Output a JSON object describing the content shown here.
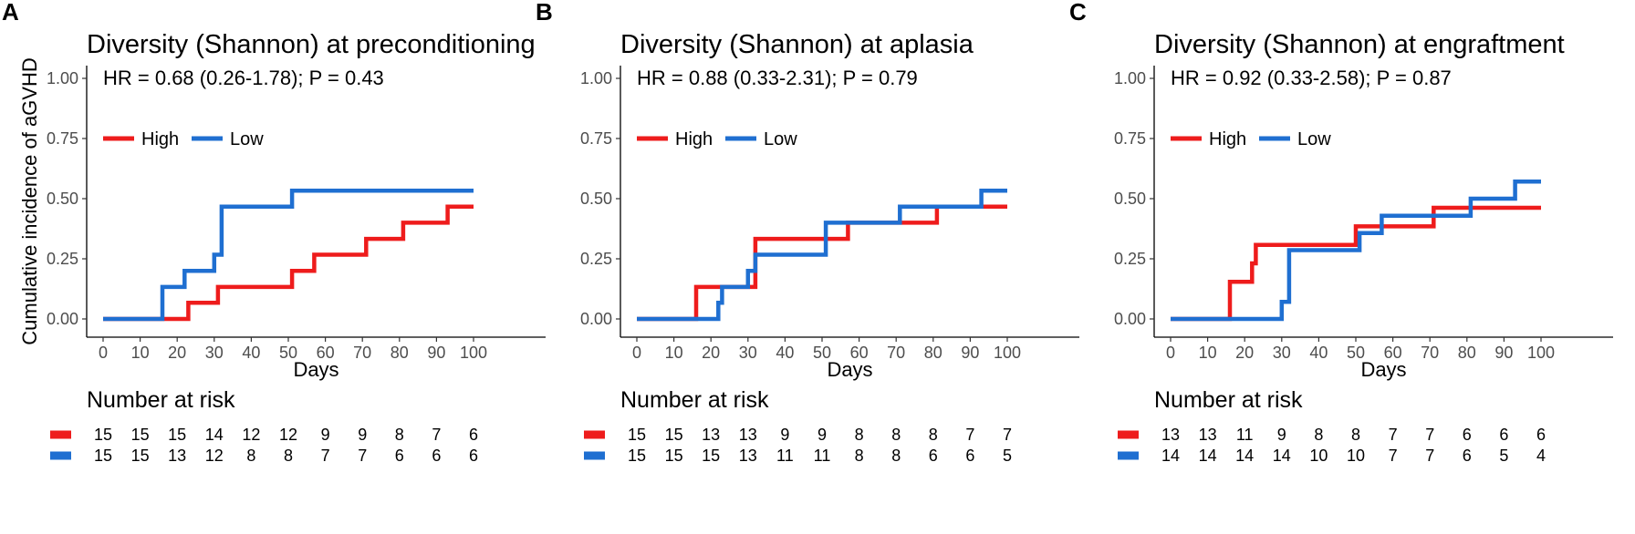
{
  "chart_data": [
    {
      "type": "line",
      "panel_label": "A",
      "title": "Diversity (Shannon) at preconditioning",
      "annotation": "HR = 0.68 (0.26-1.78); P = 0.43",
      "xlabel": "Days",
      "ylabel": "Cumulative incidence of aGVHD",
      "xlim": [
        0,
        100
      ],
      "ylim": [
        0,
        1
      ],
      "x_ticks": [
        "0",
        "10",
        "20",
        "30",
        "40",
        "50",
        "60",
        "70",
        "80",
        "90",
        "100"
      ],
      "y_ticks": [
        "0.00",
        "0.25",
        "0.50",
        "0.75",
        "1.00"
      ],
      "legend_position": "top-left",
      "series": [
        {
          "name": "High",
          "color": "#ee1c1c",
          "x": [
            0,
            23,
            31,
            51,
            57,
            71,
            81,
            93,
            100
          ],
          "y": [
            0,
            0.067,
            0.133,
            0.2,
            0.267,
            0.333,
            0.4,
            0.467,
            0.467
          ]
        },
        {
          "name": "Low",
          "color": "#1f6fd1",
          "x": [
            0,
            16,
            22,
            30,
            32,
            51,
            100
          ],
          "y": [
            0,
            0.133,
            0.2,
            0.267,
            0.467,
            0.533,
            0.533
          ]
        }
      ],
      "risk_table": {
        "title": "Number at risk",
        "rows": [
          {
            "color": "#ee1c1c",
            "values": [
              "15",
              "15",
              "15",
              "14",
              "12",
              "12",
              "9",
              "9",
              "8",
              "7",
              "6"
            ]
          },
          {
            "color": "#1f6fd1",
            "values": [
              "15",
              "15",
              "13",
              "12",
              "8",
              "8",
              "7",
              "7",
              "6",
              "6",
              "6"
            ]
          }
        ]
      }
    },
    {
      "type": "line",
      "panel_label": "B",
      "title": "Diversity (Shannon) at aplasia",
      "annotation": "HR = 0.88 (0.33-2.31); P = 0.79",
      "xlabel": "Days",
      "ylabel": "",
      "xlim": [
        0,
        100
      ],
      "ylim": [
        0,
        1
      ],
      "x_ticks": [
        "0",
        "10",
        "20",
        "30",
        "40",
        "50",
        "60",
        "70",
        "80",
        "90",
        "100"
      ],
      "y_ticks": [
        "0.00",
        "0.25",
        "0.50",
        "0.75",
        "1.00"
      ],
      "legend_position": "top-left",
      "series": [
        {
          "name": "High",
          "color": "#ee1c1c",
          "x": [
            0,
            16,
            32,
            57,
            81,
            100
          ],
          "y": [
            0,
            0.133,
            0.333,
            0.4,
            0.467,
            0.467
          ]
        },
        {
          "name": "Low",
          "color": "#1f6fd1",
          "x": [
            0,
            22,
            23,
            30,
            32,
            51,
            71,
            93,
            100
          ],
          "y": [
            0,
            0.067,
            0.133,
            0.2,
            0.267,
            0.4,
            0.467,
            0.533,
            0.533
          ]
        }
      ],
      "risk_table": {
        "title": "Number at risk",
        "rows": [
          {
            "color": "#ee1c1c",
            "values": [
              "15",
              "15",
              "13",
              "13",
              "9",
              "9",
              "8",
              "8",
              "8",
              "7",
              "7"
            ]
          },
          {
            "color": "#1f6fd1",
            "values": [
              "15",
              "15",
              "15",
              "13",
              "11",
              "11",
              "8",
              "8",
              "6",
              "6",
              "5"
            ]
          }
        ]
      }
    },
    {
      "type": "line",
      "panel_label": "C",
      "title": "Diversity (Shannon) at engraftment",
      "annotation": "HR = 0.92 (0.33-2.58); P = 0.87",
      "xlabel": "Days",
      "ylabel": "",
      "xlim": [
        0,
        100
      ],
      "ylim": [
        0,
        1
      ],
      "x_ticks": [
        "0",
        "10",
        "20",
        "30",
        "40",
        "50",
        "60",
        "70",
        "80",
        "90",
        "100"
      ],
      "y_ticks": [
        "0.00",
        "0.25",
        "0.50",
        "0.75",
        "1.00"
      ],
      "legend_position": "top-left",
      "series": [
        {
          "name": "High",
          "color": "#ee1c1c",
          "x": [
            0,
            16,
            22,
            23,
            50,
            71,
            100
          ],
          "y": [
            0,
            0.154,
            0.231,
            0.308,
            0.385,
            0.462,
            0.462
          ]
        },
        {
          "name": "Low",
          "color": "#1f6fd1",
          "x": [
            0,
            30,
            32,
            51,
            57,
            81,
            93,
            100
          ],
          "y": [
            0,
            0.071,
            0.286,
            0.357,
            0.429,
            0.5,
            0.571,
            0.571
          ]
        }
      ],
      "risk_table": {
        "title": "Number at risk",
        "rows": [
          {
            "color": "#ee1c1c",
            "values": [
              "13",
              "13",
              "11",
              "9",
              "8",
              "8",
              "7",
              "7",
              "6",
              "6",
              "6"
            ]
          },
          {
            "color": "#1f6fd1",
            "values": [
              "14",
              "14",
              "14",
              "14",
              "10",
              "10",
              "7",
              "7",
              "6",
              "5",
              "4"
            ]
          }
        ]
      }
    }
  ]
}
